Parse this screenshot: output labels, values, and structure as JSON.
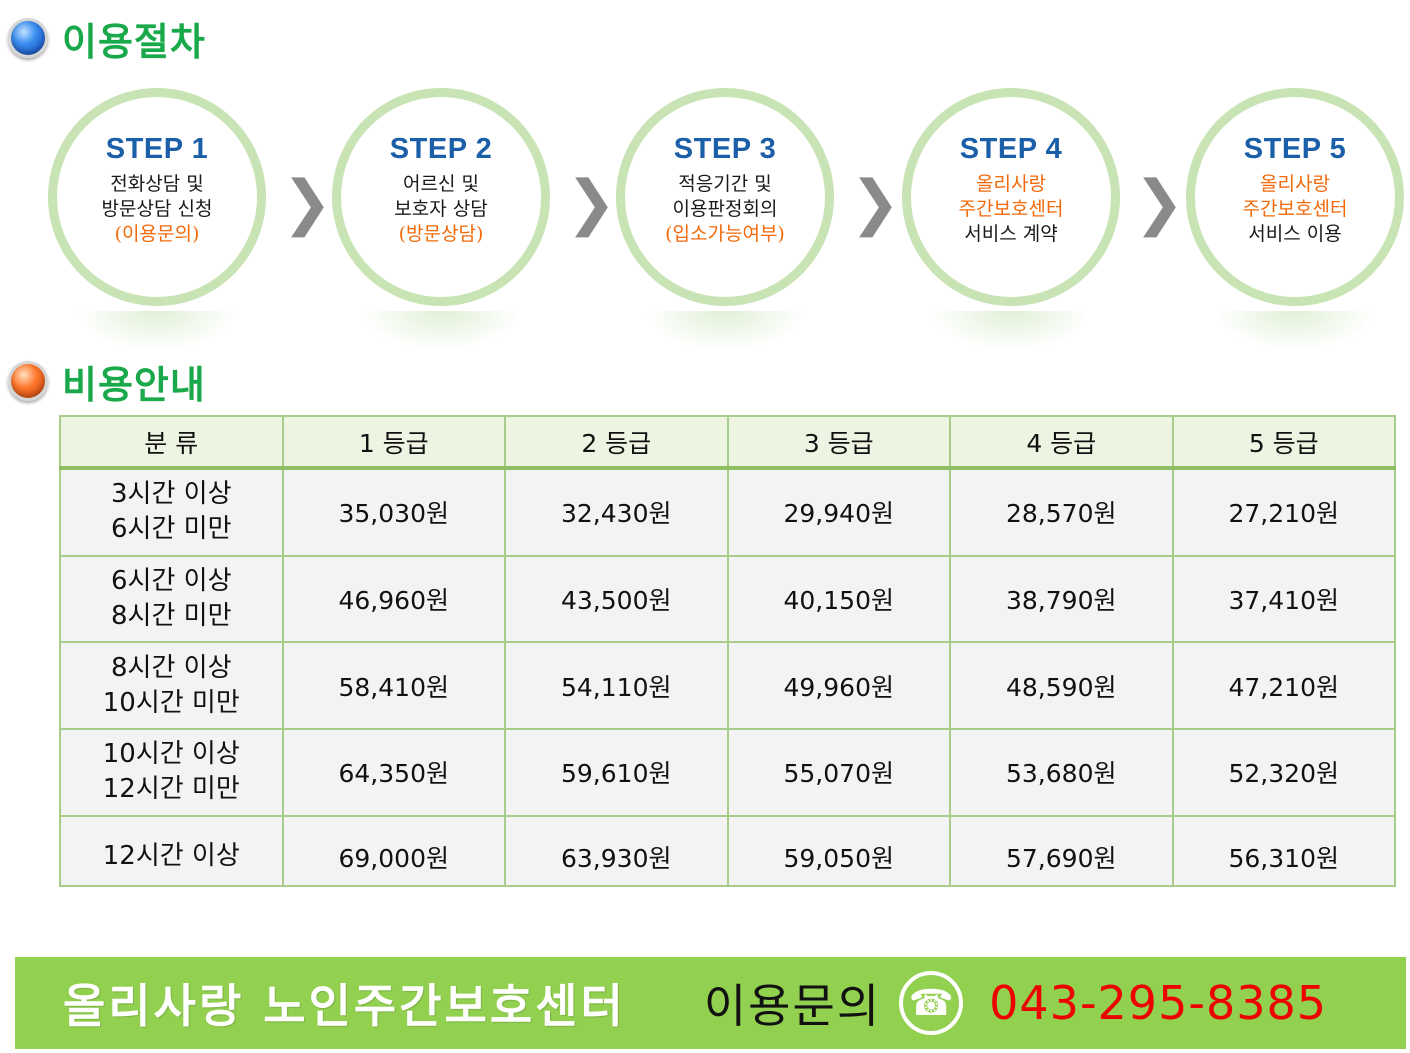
{
  "procedure": {
    "title": "이용절차",
    "steps": [
      {
        "label": "STEP 1",
        "lines": [
          {
            "text": "전화상담 및",
            "color": "black"
          },
          {
            "text": "방문상담 신청",
            "color": "black"
          },
          {
            "text": "(이용문의)",
            "color": "orange"
          }
        ]
      },
      {
        "label": "STEP 2",
        "lines": [
          {
            "text": "어르신 및",
            "color": "black"
          },
          {
            "text": "보호자 상담",
            "color": "black"
          },
          {
            "text": "(방문상담)",
            "color": "orange"
          }
        ]
      },
      {
        "label": "STEP 3",
        "lines": [
          {
            "text": "적응기간 및",
            "color": "black"
          },
          {
            "text": "이용판정회의",
            "color": "black"
          },
          {
            "text": "(입소가능여부)",
            "color": "orange"
          }
        ]
      },
      {
        "label": "STEP 4",
        "lines": [
          {
            "text": "올리사랑",
            "color": "orange"
          },
          {
            "text": "주간보호센터",
            "color": "orange"
          },
          {
            "text": "서비스 계약",
            "color": "black"
          }
        ]
      },
      {
        "label": "STEP 5",
        "lines": [
          {
            "text": "올리사랑",
            "color": "orange"
          },
          {
            "text": "주간보호센터",
            "color": "orange"
          },
          {
            "text": "서비스 이용",
            "color": "black"
          }
        ]
      }
    ]
  },
  "fees": {
    "title": "비용안내",
    "headers": [
      "분 류",
      "1 등급",
      "2 등급",
      "3 등급",
      "4 등급",
      "5 등급"
    ],
    "rows": [
      {
        "category": [
          "3시간 이상",
          "6시간 미만"
        ],
        "values": [
          "35,030원",
          "32,430원",
          "29,940원",
          "28,570원",
          "27,210원"
        ]
      },
      {
        "category": [
          "6시간 이상",
          "8시간 미만"
        ],
        "values": [
          "46,960원",
          "43,500원",
          "40,150원",
          "38,790원",
          "37,410원"
        ]
      },
      {
        "category": [
          "8시간 이상",
          "10시간 미만"
        ],
        "values": [
          "58,410원",
          "54,110원",
          "49,960원",
          "48,590원",
          "47,210원"
        ]
      },
      {
        "category": [
          "10시간 이상",
          "12시간 미만"
        ],
        "values": [
          "64,350원",
          "59,610원",
          "55,070원",
          "53,680원",
          "52,320원"
        ]
      },
      {
        "category": [
          "12시간 이상"
        ],
        "values": [
          "69,000원",
          "63,930원",
          "59,050원",
          "57,690원",
          "56,310원"
        ]
      }
    ]
  },
  "footer": {
    "center_name": "올리사랑 노인주간보호센터",
    "inquiry_label": "이용문의",
    "phone_icon": "phone-icon",
    "phone": "043-295-8385"
  },
  "colors": {
    "section_title": "#19a84a",
    "step_label": "#1a5fa8",
    "orange_text": "#f26a0a",
    "ring": "#c8e3b4",
    "footer_bg": "#92d050",
    "phone_text": "#ee0000"
  }
}
